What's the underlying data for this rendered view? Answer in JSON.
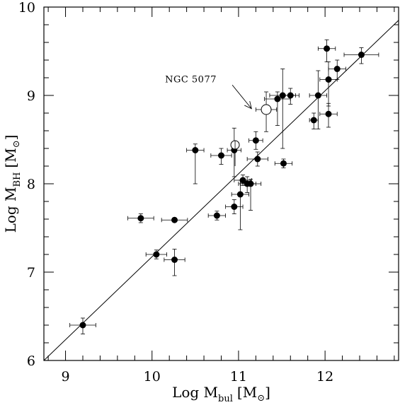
{
  "chart_data": {
    "type": "scatter",
    "title": "",
    "xlabel": {
      "main": "Log M",
      "sub": "bul",
      "units": "[M",
      "units_close": "]"
    },
    "ylabel": {
      "main": "Log M",
      "sub": "BH",
      "units": "[M",
      "units_close": "]"
    },
    "xlim": [
      8.75,
      12.85
    ],
    "ylim": [
      6.0,
      10.0
    ],
    "x_ticks": [
      9,
      10,
      11,
      12
    ],
    "y_ticks": [
      6,
      7,
      8,
      9,
      10
    ],
    "x_tick_labels": [
      "9",
      "10",
      "11",
      "12"
    ],
    "y_tick_labels": [
      "6",
      "7",
      "8",
      "9",
      "10"
    ],
    "grid": false,
    "fit_line": {
      "x": [
        8.75,
        12.85
      ],
      "y": [
        6.0,
        9.85
      ]
    },
    "annotation": {
      "text": "NGC 5077",
      "arrow_to": {
        "x": 11.15,
        "y": 8.85
      },
      "text_at": {
        "x": 10.15,
        "y": 9.15
      }
    },
    "series": [
      {
        "marker": "filled-circle",
        "points": [
          {
            "x": 9.2,
            "y": 6.4,
            "xerr": 0.15,
            "yerr": [
              0.1,
              0.08
            ]
          },
          {
            "x": 9.87,
            "y": 7.61,
            "xerr": 0.15,
            "yerr": [
              0.05,
              0.05
            ]
          },
          {
            "x": 10.05,
            "y": 7.2,
            "xerr": 0.12,
            "yerr": [
              0.05,
              0.05
            ]
          },
          {
            "x": 10.26,
            "y": 7.59,
            "xerr": 0.15,
            "yerr": [
              0.02,
              0.02
            ]
          },
          {
            "x": 10.26,
            "y": 7.14,
            "xerr": 0.12,
            "yerr": [
              0.18,
              0.12
            ]
          },
          {
            "x": 10.5,
            "y": 8.38,
            "xerr": 0.1,
            "yerr": [
              0.38,
              0.07
            ]
          },
          {
            "x": 10.75,
            "y": 7.64,
            "xerr": 0.1,
            "yerr": [
              0.05,
              0.05
            ]
          },
          {
            "x": 10.8,
            "y": 8.32,
            "xerr": 0.12,
            "yerr": [
              0.1,
              0.08
            ]
          },
          {
            "x": 10.95,
            "y": 8.38,
            "xerr": 0.08,
            "yerr": [
              0.3,
              0.25
            ]
          },
          {
            "x": 10.95,
            "y": 7.74,
            "xerr": 0.1,
            "yerr": [
              0.08,
              0.08
            ]
          },
          {
            "x": 11.02,
            "y": 7.88,
            "xerr": 0.1,
            "yerr": [
              0.4,
              0.16
            ]
          },
          {
            "x": 11.05,
            "y": 8.04,
            "xerr": 0.1,
            "yerr": [
              0.06,
              0.06
            ]
          },
          {
            "x": 11.1,
            "y": 8.0,
            "xerr": 0.1,
            "yerr": [
              0.1,
              0.08
            ]
          },
          {
            "x": 11.14,
            "y": 8.0,
            "xerr": 0.12,
            "yerr": [
              0.3,
              0.05
            ]
          },
          {
            "x": 11.2,
            "y": 8.49,
            "xerr": 0.08,
            "yerr": [
              0.1,
              0.1
            ]
          },
          {
            "x": 11.22,
            "y": 8.28,
            "xerr": 0.12,
            "yerr": [
              0.08,
              0.08
            ]
          },
          {
            "x": 11.45,
            "y": 8.96,
            "xerr": 0.15,
            "yerr": [
              0.3,
              0.08
            ]
          },
          {
            "x": 11.51,
            "y": 9.0,
            "xerr": 0.15,
            "yerr": [
              0.6,
              0.3
            ]
          },
          {
            "x": 11.52,
            "y": 8.23,
            "xerr": 0.1,
            "yerr": [
              0.05,
              0.05
            ]
          },
          {
            "x": 11.6,
            "y": 9.0,
            "xerr": 0.1,
            "yerr": [
              0.1,
              0.08
            ]
          },
          {
            "x": 11.87,
            "y": 8.72,
            "xerr": 0.05,
            "yerr": [
              0.1,
              0.08
            ]
          },
          {
            "x": 11.92,
            "y": 9.0,
            "xerr": 0.1,
            "yerr": [
              0.38,
              0.28
            ]
          },
          {
            "x": 12.02,
            "y": 9.53,
            "xerr": 0.1,
            "yerr": [
              0.15,
              0.1
            ]
          },
          {
            "x": 12.04,
            "y": 9.18,
            "xerr": 0.1,
            "yerr": [
              0.3,
              0.2
            ]
          },
          {
            "x": 12.04,
            "y": 8.79,
            "xerr": 0.1,
            "yerr": [
              0.15,
              0.12
            ]
          },
          {
            "x": 12.14,
            "y": 9.3,
            "xerr": 0.1,
            "yerr": [
              0.12,
              0.1
            ]
          },
          {
            "x": 12.42,
            "y": 9.46,
            "xerr": 0.2,
            "yerr": [
              0.1,
              0.08
            ]
          }
        ]
      },
      {
        "marker": "open-circle",
        "points": [
          {
            "x": 11.32,
            "y": 8.84,
            "xerr": 0.12,
            "yerr": [
              0.25,
              0.2
            ]
          }
        ]
      },
      {
        "marker": "open-circle-with-dot",
        "points": [
          {
            "x": 10.96,
            "y": 8.44,
            "xerr": 0.0,
            "yerr": [
              0.0,
              0.0
            ]
          }
        ]
      }
    ]
  }
}
